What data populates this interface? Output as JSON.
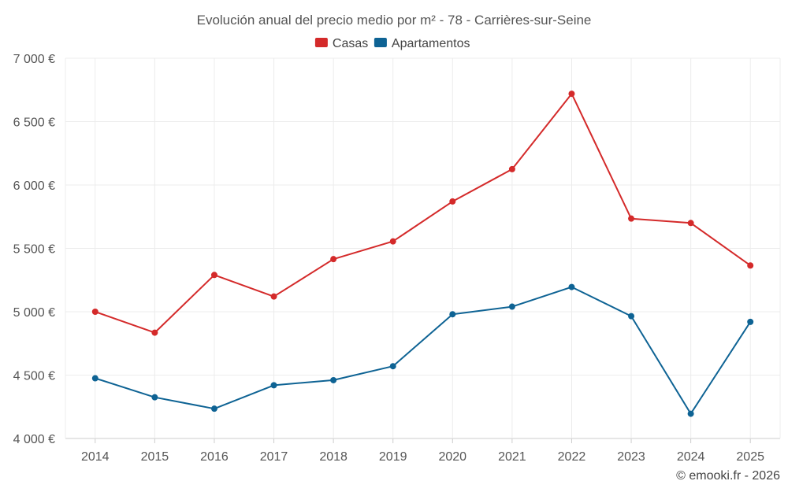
{
  "chart_data": {
    "type": "line",
    "title": "Evolución anual del precio medio por m² - 78 - Carrières-sur-Seine",
    "categories": [
      "2014",
      "2015",
      "2016",
      "2017",
      "2018",
      "2019",
      "2020",
      "2021",
      "2022",
      "2023",
      "2024",
      "2025"
    ],
    "series": [
      {
        "name": "Casas",
        "color": "#d42a2a",
        "values": [
          5000,
          4835,
          5290,
          5120,
          5415,
          5555,
          5870,
          6125,
          6720,
          5735,
          5700,
          5365
        ]
      },
      {
        "name": "Apartamentos",
        "color": "#0e6394",
        "values": [
          4475,
          4325,
          4235,
          4420,
          4460,
          4570,
          4980,
          5040,
          5195,
          4965,
          4195,
          4920
        ]
      }
    ],
    "ylim": [
      4000,
      7000
    ],
    "yticks": [
      4000,
      4500,
      5000,
      5500,
      6000,
      6500,
      7000
    ],
    "ytick_labels": [
      "4 000 €",
      "4 500 €",
      "5 000 €",
      "5 500 €",
      "6 000 €",
      "6 500 €",
      "7 000 €"
    ],
    "xlabel": "",
    "ylabel": "",
    "grid": true,
    "legend_position": "top-center",
    "source_label": "© emooki.fr - 2026"
  }
}
